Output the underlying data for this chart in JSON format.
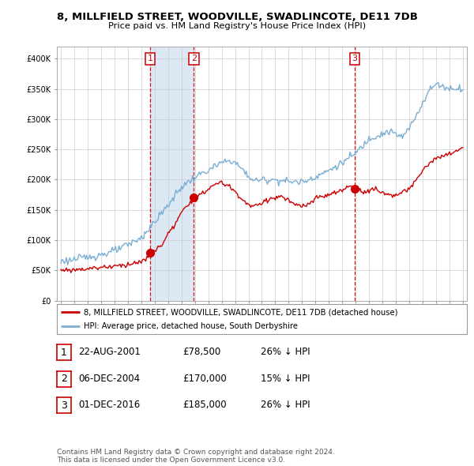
{
  "title": "8, MILLFIELD STREET, WOODVILLE, SWADLINCOTE, DE11 7DB",
  "subtitle": "Price paid vs. HM Land Registry's House Price Index (HPI)",
  "property_label": "8, MILLFIELD STREET, WOODVILLE, SWADLINCOTE, DE11 7DB (detached house)",
  "hpi_label": "HPI: Average price, detached house, South Derbyshire",
  "transactions": [
    {
      "num": 1,
      "date": "22-AUG-2001",
      "price": "£78,500",
      "change": "26% ↓ HPI",
      "year": 2001.65,
      "price_val": 78500
    },
    {
      "num": 2,
      "date": "06-DEC-2004",
      "price": "£170,000",
      "change": "15% ↓ HPI",
      "year": 2004.92,
      "price_val": 170000
    },
    {
      "num": 3,
      "date": "01-DEC-2016",
      "price": "£185,000",
      "change": "26% ↓ HPI",
      "year": 2016.92,
      "price_val": 185000
    }
  ],
  "footer": "Contains HM Land Registry data © Crown copyright and database right 2024.\nThis data is licensed under the Open Government Licence v3.0.",
  "property_color": "#cc0000",
  "hpi_color": "#7bafd4",
  "hpi_fill_color": "#dce9f5",
  "vline_color": "#cc0000",
  "shade_color": "#dce9f5",
  "background_color": "#ffffff",
  "grid_color": "#cccccc",
  "ylim": [
    0,
    420000
  ],
  "yticks": [
    0,
    50000,
    100000,
    150000,
    200000,
    250000,
    300000,
    350000,
    400000
  ],
  "xlim_start": 1994.7,
  "xlim_end": 2025.3
}
